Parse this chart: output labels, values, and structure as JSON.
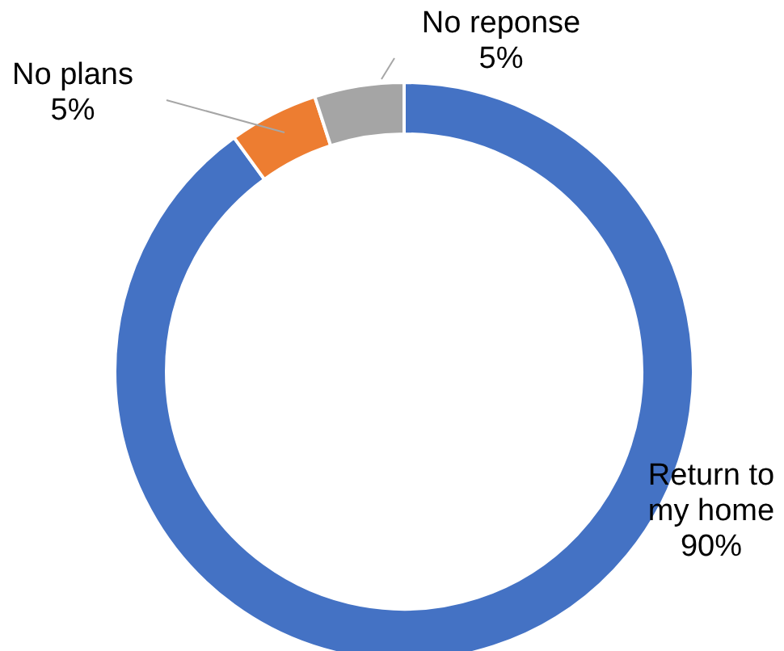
{
  "chart_data": {
    "type": "donut",
    "categories": [
      "Return to my home",
      "No plans",
      "No reponse"
    ],
    "values": [
      90,
      5,
      5
    ],
    "colors": [
      "#4472c4",
      "#ed7d31",
      "#a5a5a5"
    ],
    "value_labels": [
      "90%",
      "5%",
      "5%"
    ]
  }
}
